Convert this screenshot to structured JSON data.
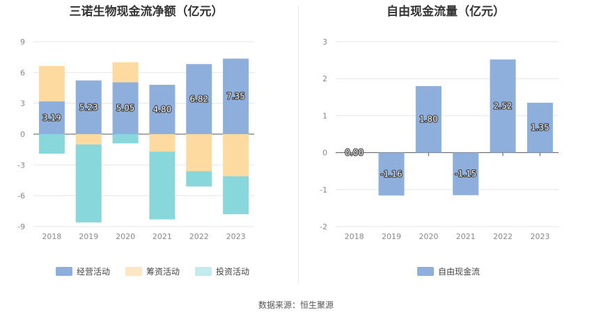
{
  "left_title": "三诺生物现金流净额（亿元）",
  "right_title": "自由现金流量（亿元）",
  "source": "数据来源：恒生聚源",
  "colors": {
    "operating": "#8eaedb",
    "financing": "#fddba0",
    "investing": "#88d8db",
    "free_cash": "#8eaedb",
    "legend_investing": "#c3ebee",
    "grid": "#e6e6e6",
    "axis": "#555555",
    "tick": "#888888"
  },
  "chart_data": [
    {
      "type": "bar",
      "stacked": true,
      "title": "三诺生物现金流净额（亿元）",
      "categories": [
        "2018",
        "2019",
        "2020",
        "2021",
        "2022",
        "2023"
      ],
      "ylim": [
        -9,
        9
      ],
      "yticks": [
        "9",
        "6",
        "3",
        "0",
        "-3",
        "-6",
        "-9"
      ],
      "grid": true,
      "legend_position": "bottom",
      "series": [
        {
          "name": "经营活动",
          "values": [
            3.19,
            5.23,
            5.05,
            4.8,
            6.82,
            7.35
          ],
          "labels": [
            "3.19",
            "5.23",
            "5.05",
            "4.80",
            "6.82",
            "7.35"
          ]
        },
        {
          "name": "筹资活动",
          "values": [
            3.45,
            -1.0,
            1.95,
            -1.7,
            -3.6,
            -4.1
          ]
        },
        {
          "name": "投资活动",
          "values": [
            -1.9,
            -7.6,
            -0.9,
            -6.6,
            -1.5,
            -3.7
          ]
        }
      ]
    },
    {
      "type": "bar",
      "title": "自由现金流量（亿元）",
      "categories": [
        "2018",
        "2019",
        "2020",
        "2021",
        "2022",
        "2023"
      ],
      "ylim": [
        -2,
        3
      ],
      "yticks": [
        "3",
        "2",
        "1",
        "0",
        "-1",
        "-2"
      ],
      "grid": true,
      "legend_position": "bottom",
      "series": [
        {
          "name": "自由现金流",
          "values": [
            0.0,
            -1.16,
            1.8,
            -1.15,
            2.52,
            1.35
          ],
          "labels": [
            "0.00",
            "-1.16",
            "1.80",
            "-1.15",
            "2.52",
            "1.35"
          ]
        }
      ]
    }
  ]
}
